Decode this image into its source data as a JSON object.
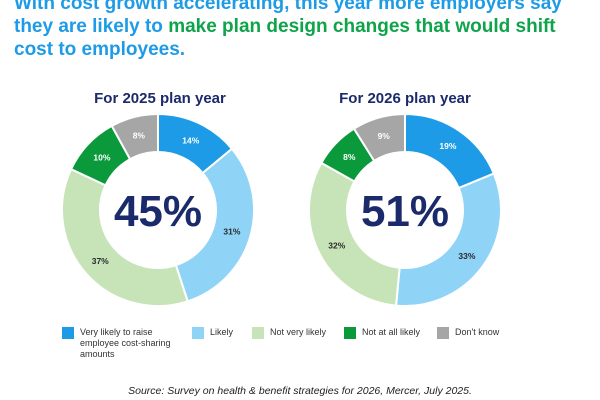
{
  "headline": {
    "line1": "With cost growth accelerating, this year more employers say",
    "line2_part1": "they are likely to ",
    "line2_part2": "make plan design changes that would shift",
    "line3": "cost to employees."
  },
  "colors": {
    "very_likely": "#1e9be6",
    "likely": "#8fd3f7",
    "not_very_likely": "#c7e4b8",
    "not_at_all_likely": "#0a9a3c",
    "dont_know": "#a6a6a6",
    "center_text": "#1b2a6b"
  },
  "chart_data": [
    {
      "type": "pie",
      "title": "For 2025 plan year",
      "center_label": "45%",
      "categories": [
        "Very likely to raise employee cost-sharing amounts",
        "Likely",
        "Not very likely",
        "Not at all likely",
        "Don't know"
      ],
      "values": [
        14,
        31,
        37,
        10,
        8
      ],
      "value_labels": [
        "14%",
        "31%",
        "37%",
        "10%",
        "8%"
      ]
    },
    {
      "type": "pie",
      "title": "For 2026 plan year",
      "center_label": "51%",
      "categories": [
        "Very likely to raise employee cost-sharing amounts",
        "Likely",
        "Not very likely",
        "Not at all likely",
        "Don't know"
      ],
      "values": [
        19,
        33,
        32,
        8,
        9
      ],
      "value_labels": [
        "19%",
        "33%",
        "32%",
        "8%",
        "9%"
      ]
    }
  ],
  "legend": [
    {
      "key": "very_likely",
      "line1": "Very likely to raise",
      "line2": "employee cost-sharing",
      "line3": "amounts"
    },
    {
      "key": "likely",
      "line1": "Likely",
      "line2": "",
      "line3": ""
    },
    {
      "key": "not_very_likely",
      "line1": "Not very likely",
      "line2": "",
      "line3": ""
    },
    {
      "key": "not_at_all_likely",
      "line1": "Not at all likely",
      "line2": "",
      "line3": ""
    },
    {
      "key": "dont_know",
      "line1": "Don't know",
      "line2": "",
      "line3": ""
    }
  ],
  "source": "Source: Survey on health & benefit strategies for 2026, Mercer, July 2025."
}
